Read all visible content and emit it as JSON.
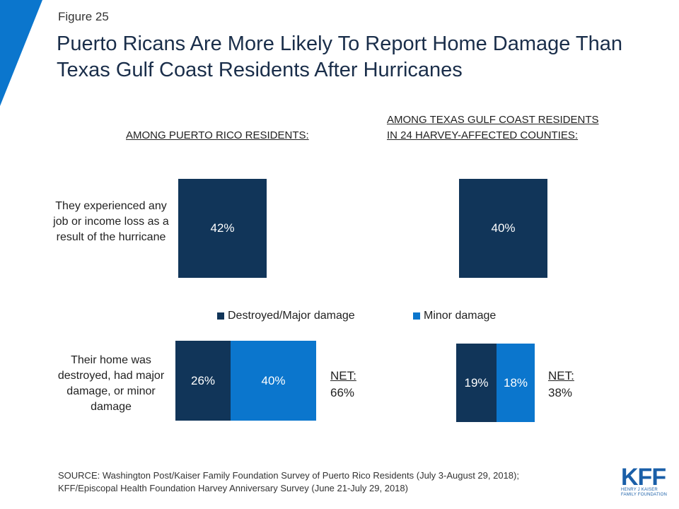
{
  "figure_label": "Figure 25",
  "title": "Puerto Ricans Are More Likely To Report Home Damage Than Texas Gulf Coast Residents After Hurricanes",
  "sections": {
    "puerto_rico": "AMONG PUERTO RICO RESIDENTS:",
    "texas_line1": "AMONG TEXAS GULF COAST RESIDENTS",
    "texas_line2": "IN 24 HARVEY-AFFECTED COUNTIES:"
  },
  "rows": {
    "job_loss": "They experienced any job or income loss as a result of the hurricane",
    "home_damage": "Their home was destroyed, had major damage, or minor damage"
  },
  "net": {
    "label": "NET:",
    "puerto_rico": "66%",
    "texas": "38%"
  },
  "source": {
    "line1": "SOURCE: Washington Post/Kaiser Family Foundation Survey of Puerto Rico Residents (July 3-August 29, 2018);",
    "line2": "KFF/Episcopal Health Foundation Harvey Anniversary Survey (June 21-July 29, 2018)"
  },
  "logo": {
    "main": "KFF",
    "sub1": "HENRY J KAISER",
    "sub2": "FAMILY FOUNDATION"
  },
  "colors": {
    "dark": "#113559",
    "mid": "#0b76cd",
    "corner": "#0b76cd"
  },
  "chart_data": [
    {
      "type": "bar",
      "orientation": "horizontal",
      "stacked": false,
      "categories": [
        "They experienced any job or income loss as a result of the hurricane"
      ],
      "series": [
        {
          "values": [
            42
          ],
          "labels": [
            "42%"
          ],
          "group": "AMONG PUERTO RICO RESIDENTS:"
        },
        {
          "values": [
            40
          ],
          "labels": [
            "40%"
          ],
          "group": "AMONG TEXAS GULF COAST RESIDENTS IN 24 HARVEY-AFFECTED COUNTIES:"
        }
      ]
    },
    {
      "type": "bar",
      "orientation": "horizontal",
      "stacked": true,
      "categories": [
        "Their home was destroyed, had major damage, or minor damage"
      ],
      "legend": "top",
      "series": [
        {
          "name": "Destroyed/Major damage",
          "values_pr": 26,
          "label_pr": "26%",
          "values_tx": 19,
          "label_tx": "19%"
        },
        {
          "name": "Minor damage",
          "values_pr": 40,
          "label_pr": "40%",
          "values_tx": 18,
          "label_tx": "18%"
        }
      ],
      "net": {
        "puerto_rico": 66,
        "texas": 38
      }
    }
  ]
}
